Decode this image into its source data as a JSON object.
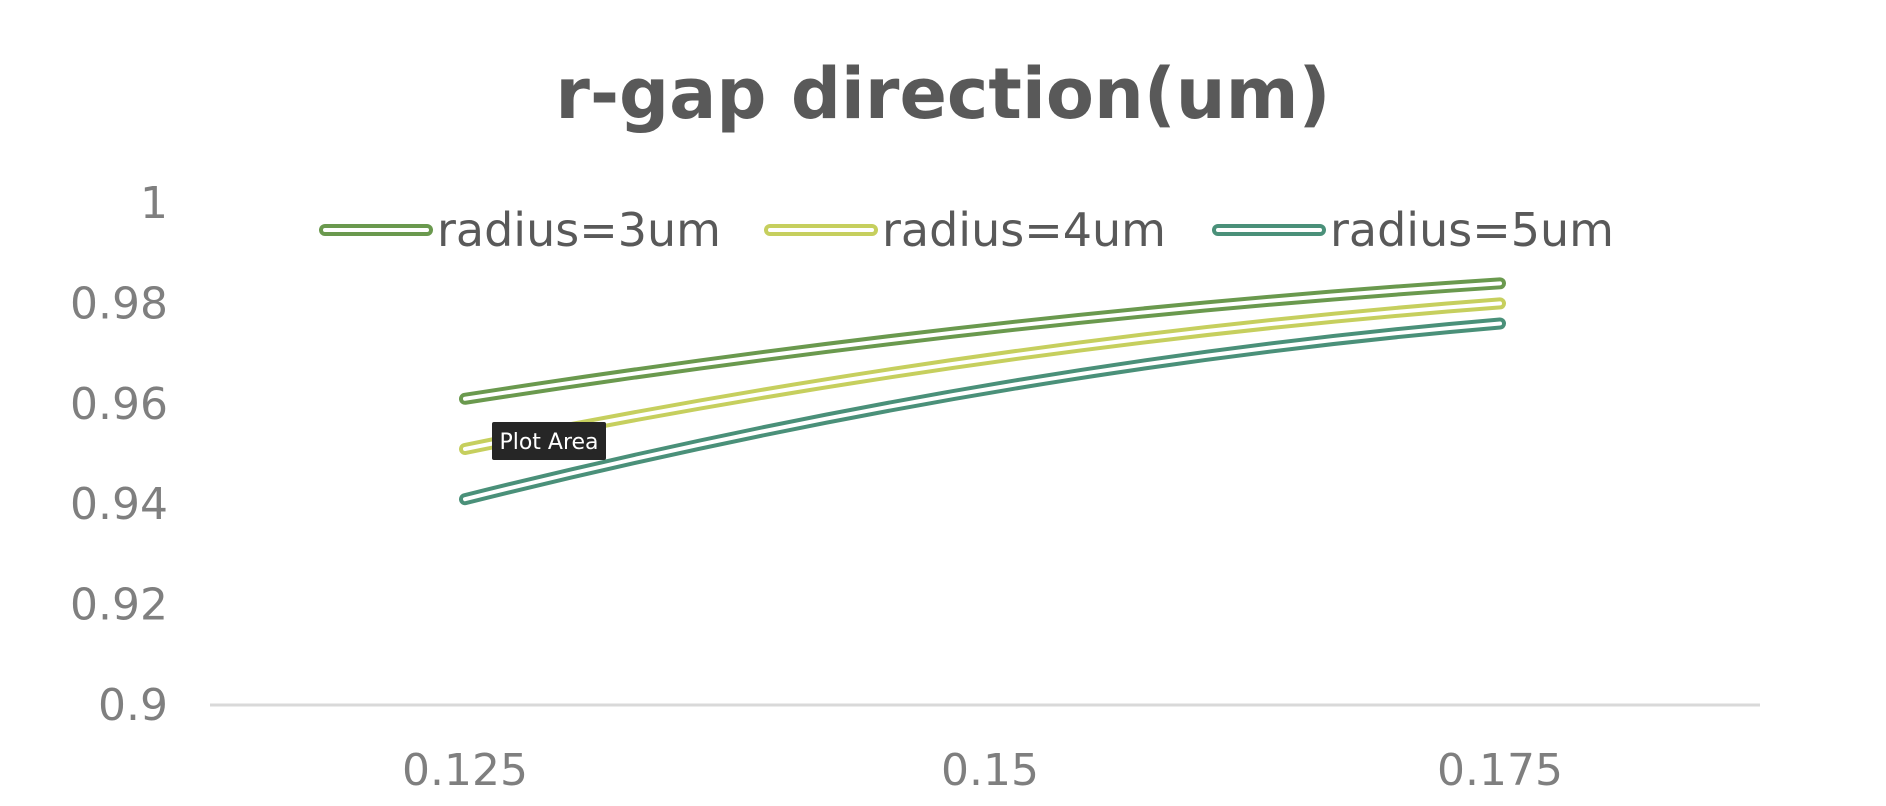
{
  "chart_data": {
    "type": "line",
    "title": "r-gap direction(um)",
    "categories": [
      "0.125",
      "0.15",
      "0.175"
    ],
    "y_ticks": [
      "0.9",
      "0.92",
      "0.94",
      "0.96",
      "0.98",
      "1"
    ],
    "ylim": [
      0.9,
      1.0
    ],
    "grid": false,
    "legend_position": "top",
    "series": [
      {
        "name": "radius=3um",
        "color": "#6a994e",
        "values": [
          0.961,
          0.975,
          0.984
        ]
      },
      {
        "name": "radius=4um",
        "color": "#c6cf5e",
        "values": [
          0.951,
          0.969,
          0.98
        ]
      },
      {
        "name": "radius=5um",
        "color": "#4a9079",
        "values": [
          0.941,
          0.963,
          0.976
        ]
      }
    ]
  },
  "tooltip": {
    "label": "Plot Area"
  }
}
